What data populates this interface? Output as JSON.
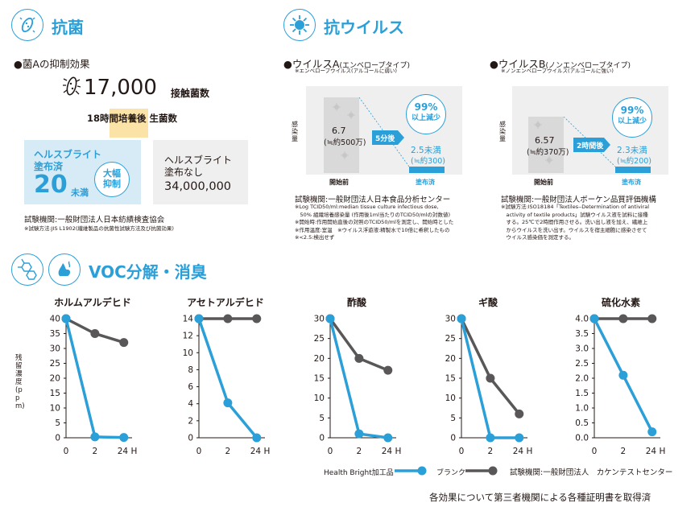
{
  "antibacterial": {
    "title": "抗菌",
    "subtitle": "●菌Aの抑制効果",
    "contact_value": "17,000",
    "contact_label": "接触菌数",
    "hours_label": "18時間培養後 生菌数",
    "treated": {
      "line1": "ヘルスブライト",
      "line2": "塗布済",
      "value": "20",
      "unit": "未満",
      "badge1": "大幅",
      "badge2": "抑制"
    },
    "untreated": {
      "line1": "ヘルスブライト",
      "line2": "塗布なし",
      "value": "34,000,000"
    },
    "test_org": "試験機関:一般財団法人日本紡績検査協会",
    "test_method": "※試験方法:JIS L1902(繊維製品の抗菌性試験方法及び抗菌効果)"
  },
  "antiviral": {
    "title": "抗ウイルス",
    "virus_a": {
      "title": "●ウイルスA",
      "title_suffix": "(エンベロープタイプ)",
      "note": "※エンベロープウイルス(アルコールに弱い)",
      "ylabel": "感染量",
      "before_value": "6.7",
      "before_sub": "(≒約500万)",
      "time": "5分後",
      "after_value": "2.5未満",
      "after_sub": "(≒約300)",
      "reduction": "99%",
      "reduction_sub": "以上減少",
      "x_before": "開始前",
      "x_after": "塗布済",
      "test_org": "試験機関:一般財団法人日本食品分析センター",
      "notes": [
        "※Log TCID50/ml:median tissue culture infectious dose,",
        "　50% 組織培養感染量 (作用後1ml当たりのTCID50/mlの対数値)",
        "※開始時:作用開始直後の対照のTCID50/mlを測定し、開始時とした",
        "※作用温度:室温　※ウイルス浮遊液:精製水で10倍に希釈したもの",
        "※<2.5:検出せず"
      ]
    },
    "virus_b": {
      "title": "●ウイルスB",
      "title_suffix": "(ノンエンベロープタイプ)",
      "note": "※ノンエンベロープウイルス(アルコールに強い)",
      "ylabel": "感染量",
      "before_value": "6.57",
      "before_sub": "(≒約370万)",
      "time": "2時間後",
      "after_value": "2.3未満",
      "after_sub": "(≒約200)",
      "reduction": "99%",
      "reduction_sub": "以上減少",
      "x_before": "開始前",
      "x_after": "塗布済",
      "test_org": "試験機関:一般財団法人ボーケン品質評価機構",
      "notes": [
        "※試験方法:ISO18184「Textiles‒Determination of antiviral",
        "　activity of textile products」試験ウイルス液を試料に接種",
        "　する。25℃で2時間作用させる。洗い出し液を加え、繊維上",
        "　からウイルスを洗い出す。ウイルスを宿主細胞に感染させて",
        "　ウイルス感染価を測定する。"
      ]
    }
  },
  "voc": {
    "title": "VOC分解・消臭",
    "ylabel": "残留濃度(ppm)",
    "legend_treated": "Health Bright加工品",
    "legend_blank": "ブランク",
    "test_org": "試験機関:一般財団法人　カケンテストセンター",
    "footer": "各効果について第三者機関による各種証明書を取得済",
    "colors": {
      "treated": "#2b9fd8",
      "blank": "#595757"
    }
  },
  "chart_data": [
    {
      "type": "line",
      "title": "ホルムアルデヒド",
      "x": [
        0,
        2,
        24
      ],
      "x_tick_labels": [
        "0",
        "2",
        "24 H"
      ],
      "ylim": [
        0,
        40
      ],
      "y_ticks": [
        0,
        5,
        10,
        15,
        20,
        25,
        30,
        35,
        40
      ],
      "y_tick_labels": [
        "0",
        "5",
        "10",
        "15",
        "20",
        "25",
        "30",
        "35",
        "40"
      ],
      "series": [
        {
          "name": "Health Bright加工品",
          "values": [
            40,
            0.3,
            0.1
          ]
        },
        {
          "name": "ブランク",
          "values": [
            40,
            35,
            32
          ]
        }
      ]
    },
    {
      "type": "line",
      "title": "アセトアルデヒド",
      "x": [
        0,
        2,
        24
      ],
      "x_tick_labels": [
        "0",
        "2",
        "24 H"
      ],
      "ylim": [
        0,
        14
      ],
      "y_ticks": [
        0,
        2,
        4,
        6,
        8,
        10,
        12,
        14
      ],
      "y_tick_labels": [
        "0",
        "2",
        "4",
        "6",
        "8",
        "10",
        "12",
        "14"
      ],
      "series": [
        {
          "name": "Health Bright加工品",
          "values": [
            14,
            4.1,
            0
          ]
        },
        {
          "name": "ブランク",
          "values": [
            14,
            14,
            14
          ]
        }
      ]
    },
    {
      "type": "line",
      "title": "酢酸",
      "x": [
        0,
        2,
        24
      ],
      "x_tick_labels": [
        "0",
        "2",
        "24 H"
      ],
      "ylim": [
        0,
        30
      ],
      "y_ticks": [
        0,
        5,
        10,
        15,
        20,
        25,
        30
      ],
      "y_tick_labels": [
        "0",
        "5",
        "10",
        "15",
        "20",
        "25",
        "30"
      ],
      "series": [
        {
          "name": "Health Bright加工品",
          "values": [
            30,
            1,
            0
          ]
        },
        {
          "name": "ブランク",
          "values": [
            30,
            20,
            17
          ]
        }
      ]
    },
    {
      "type": "line",
      "title": "ギ酸",
      "x": [
        0,
        2,
        24
      ],
      "x_tick_labels": [
        "0",
        "2",
        "24 H"
      ],
      "ylim": [
        0,
        30
      ],
      "y_ticks": [
        0,
        5,
        10,
        15,
        20,
        25,
        30
      ],
      "y_tick_labels": [
        "0",
        "5",
        "10",
        "15",
        "20",
        "25",
        "30"
      ],
      "series": [
        {
          "name": "Health Bright加工品",
          "values": [
            30,
            0,
            0
          ]
        },
        {
          "name": "ブランク",
          "values": [
            30,
            15,
            6
          ]
        }
      ]
    },
    {
      "type": "line",
      "title": "硫化水素",
      "x": [
        0,
        2,
        24
      ],
      "x_tick_labels": [
        "0",
        "2",
        "24 H"
      ],
      "ylim": [
        0,
        4
      ],
      "y_ticks": [
        0,
        0.5,
        1,
        1.5,
        2,
        2.5,
        3,
        3.5,
        4
      ],
      "y_tick_labels": [
        "0.0",
        "0.5",
        "1.0",
        "1.5",
        "2.0",
        "2.5",
        "3.0",
        "3.5",
        "4.0"
      ],
      "series": [
        {
          "name": "Health Bright加工品",
          "values": [
            4,
            2.1,
            0.2
          ]
        },
        {
          "name": "ブランク",
          "values": [
            4,
            4,
            4
          ]
        }
      ]
    }
  ]
}
